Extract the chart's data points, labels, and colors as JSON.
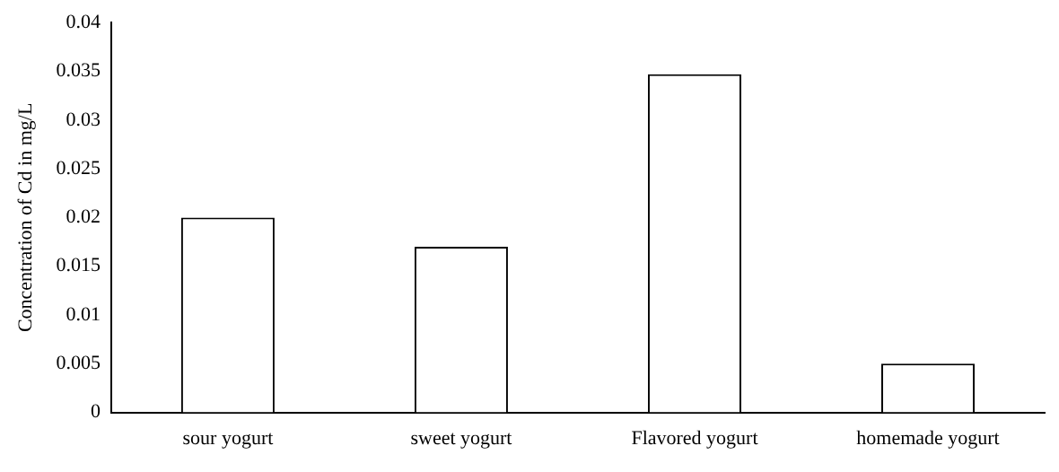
{
  "chart_data": {
    "type": "bar",
    "ylabel": "Concentration of Cd in mg/L",
    "categories": [
      "sour yogurt",
      "sweet yogurt",
      "Flavored yogurt",
      "homemade yogurt"
    ],
    "values": [
      0.02,
      0.017,
      0.0347,
      0.005
    ],
    "color": "#ffffff",
    "ylim": [
      0,
      0.04
    ],
    "yticks": [
      0,
      0.005,
      0.01,
      0.015,
      0.02,
      0.025,
      0.03,
      0.035,
      0.04
    ],
    "grid": false,
    "legend": false
  }
}
